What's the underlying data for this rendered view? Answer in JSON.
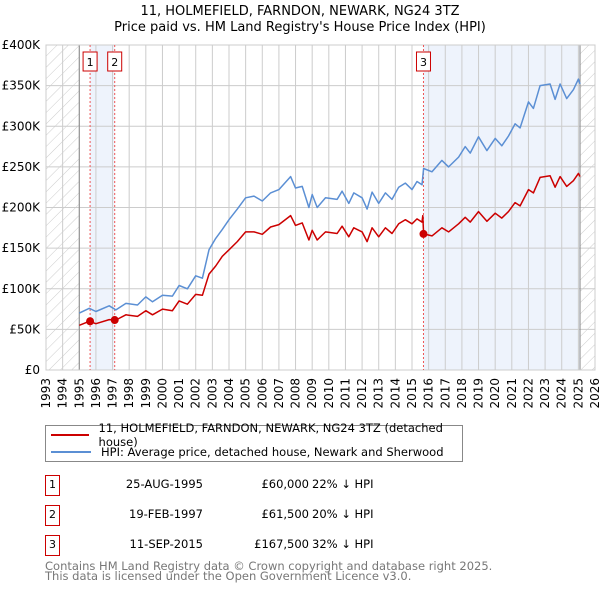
{
  "chart_data": {
    "type": "line",
    "title": "11, HOLMEFIELD, FARNDON, NEWARK, NG24 3TZ",
    "subtitle": "Price paid vs. HM Land Registry's House Price Index (HPI)",
    "xlim": [
      1993,
      2026
    ],
    "ylim": [
      0,
      400000
    ],
    "x_ticks": [
      "1993",
      "1994",
      "1995",
      "1996",
      "1997",
      "1998",
      "1999",
      "2000",
      "2001",
      "2002",
      "2003",
      "2004",
      "2005",
      "2006",
      "2007",
      "2008",
      "2009",
      "2010",
      "2011",
      "2012",
      "2013",
      "2014",
      "2015",
      "2016",
      "2017",
      "2018",
      "2019",
      "2020",
      "2021",
      "2022",
      "2023",
      "2024",
      "2025",
      "2026"
    ],
    "y_ticks": [
      {
        "v": 0,
        "label": "£0"
      },
      {
        "v": 50000,
        "label": "£50K"
      },
      {
        "v": 100000,
        "label": "£100K"
      },
      {
        "v": 150000,
        "label": "£150K"
      },
      {
        "v": 200000,
        "label": "£200K"
      },
      {
        "v": 250000,
        "label": "£250K"
      },
      {
        "v": 300000,
        "label": "£300K"
      },
      {
        "v": 350000,
        "label": "£350K"
      },
      {
        "v": 400000,
        "label": "£400K"
      }
    ],
    "grid": true,
    "hatched_ranges": [
      [
        1993,
        1995
      ],
      [
        2025.1,
        2026
      ]
    ],
    "shaded_ranges": [
      [
        1995.65,
        1997.13
      ],
      [
        2015.69,
        2025.1
      ]
    ],
    "x": [
      1995.0,
      1995.6,
      1996.0,
      1996.8,
      1997.2,
      1997.8,
      1998.5,
      1999.0,
      1999.4,
      2000.0,
      2000.6,
      2001.0,
      2001.5,
      2002.0,
      2002.4,
      2002.8,
      2003.2,
      2003.6,
      2004.0,
      2004.5,
      2005.0,
      2005.5,
      2006.0,
      2006.5,
      2007.0,
      2007.7,
      2008.0,
      2008.4,
      2008.8,
      2009.0,
      2009.3,
      2009.8,
      2010.5,
      2010.8,
      2011.2,
      2011.5,
      2012.0,
      2012.3,
      2012.6,
      2013.0,
      2013.4,
      2013.8,
      2014.2,
      2014.6,
      2015.0,
      2015.3,
      2015.6,
      2015.65,
      2015.7,
      2016.2,
      2016.8,
      2017.2,
      2017.8,
      2018.2,
      2018.5,
      2019.0,
      2019.5,
      2020.0,
      2020.4,
      2020.8,
      2021.2,
      2021.5,
      2022.0,
      2022.3,
      2022.7,
      2023.3,
      2023.6,
      2023.9,
      2024.3,
      2024.7,
      2025.0,
      2025.1
    ],
    "series": [
      {
        "name": "11, HOLMEFIELD, FARNDON, NEWARK, NG24 3TZ (detached house)",
        "color": "#cc0000",
        "values": [
          55000,
          60000,
          57000,
          62000,
          61500,
          68000,
          66000,
          73000,
          68000,
          75000,
          73000,
          85000,
          81000,
          93000,
          92000,
          118000,
          128000,
          140000,
          148000,
          158000,
          170000,
          170000,
          167000,
          176000,
          179000,
          190000,
          178000,
          181000,
          160000,
          172000,
          160000,
          170000,
          168000,
          177000,
          164000,
          175000,
          170000,
          158000,
          175000,
          164000,
          175000,
          168000,
          180000,
          185000,
          180000,
          186000,
          182000,
          190000,
          167500,
          165000,
          175000,
          170000,
          180000,
          188000,
          182000,
          195000,
          183000,
          193000,
          187000,
          195000,
          206000,
          202000,
          222000,
          218000,
          237000,
          239000,
          225000,
          238000,
          226000,
          233000,
          242000,
          238000
        ]
      },
      {
        "name": "HPI: Average price, detached house, Newark and Sherwood",
        "color": "#5b8fd4",
        "values": [
          70000,
          76000,
          72000,
          79000,
          74000,
          82000,
          80000,
          90000,
          84000,
          92000,
          91000,
          104000,
          100000,
          116000,
          113000,
          148000,
          162000,
          173000,
          185000,
          198000,
          212000,
          214000,
          208000,
          218000,
          222000,
          238000,
          224000,
          226000,
          200000,
          216000,
          200000,
          212000,
          210000,
          220000,
          205000,
          218000,
          212000,
          198000,
          219000,
          205000,
          218000,
          210000,
          225000,
          230000,
          222000,
          232000,
          228000,
          238000,
          248000,
          244000,
          258000,
          250000,
          262000,
          275000,
          267000,
          287000,
          270000,
          285000,
          276000,
          288000,
          303000,
          298000,
          330000,
          322000,
          350000,
          352000,
          333000,
          352000,
          334000,
          345000,
          358000,
          352000
        ]
      }
    ],
    "sales": [
      {
        "id": "1",
        "x": 1995.65,
        "price": 60000,
        "date": "25-AUG-1995",
        "price_label": "£60,000",
        "hpi_label": "22% ↓ HPI"
      },
      {
        "id": "2",
        "x": 1997.13,
        "price": 61500,
        "date": "19-FEB-1997",
        "price_label": "£61,500",
        "hpi_label": "20% ↓ HPI"
      },
      {
        "id": "3",
        "x": 2015.69,
        "price": 167500,
        "date": "11-SEP-2015",
        "price_label": "£167,500",
        "hpi_label": "32% ↓ HPI"
      }
    ]
  },
  "legend": {
    "property": "11, HOLMEFIELD, FARNDON, NEWARK, NG24 3TZ (detached house)",
    "hpi": "HPI: Average price, detached house, Newark and Sherwood"
  },
  "footer": {
    "line1": "Contains HM Land Registry data © Crown copyright and database right 2025.",
    "line2": "This data is licensed under the Open Government Licence v3.0."
  }
}
